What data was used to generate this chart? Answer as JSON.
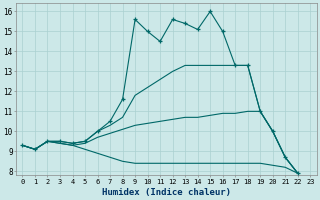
{
  "xlabel": "Humidex (Indice chaleur)",
  "background_color": "#cce8e8",
  "grid_color": "#aad0d0",
  "line_color": "#006868",
  "ylim": [
    7.8,
    16.4
  ],
  "xlim": [
    -0.5,
    23.5
  ],
  "yticks": [
    8,
    9,
    10,
    11,
    12,
    13,
    14,
    15,
    16
  ],
  "xticks": [
    0,
    1,
    2,
    3,
    4,
    5,
    6,
    7,
    8,
    9,
    10,
    11,
    12,
    13,
    14,
    15,
    16,
    17,
    18,
    19,
    20,
    21,
    22,
    23
  ],
  "lines": [
    {
      "x": [
        0,
        1,
        2,
        3,
        4,
        5,
        6,
        7,
        8,
        9,
        10,
        11,
        12,
        13,
        14,
        15,
        16,
        17,
        18,
        19,
        20,
        21,
        22
      ],
      "y": [
        9.3,
        9.1,
        9.5,
        9.5,
        9.4,
        9.5,
        10.0,
        10.5,
        11.6,
        15.6,
        15.0,
        14.5,
        15.6,
        15.4,
        15.1,
        16.0,
        15.0,
        13.3,
        13.3,
        11.0,
        10.0,
        8.7,
        7.9
      ],
      "marker": true
    },
    {
      "x": [
        0,
        1,
        2,
        3,
        4,
        5,
        6,
        7,
        8,
        9,
        10,
        11,
        12,
        13,
        14,
        15,
        16,
        17,
        18,
        19,
        20,
        21,
        22
      ],
      "y": [
        9.3,
        9.1,
        9.5,
        9.5,
        9.4,
        9.5,
        10.0,
        10.3,
        10.7,
        11.8,
        12.2,
        12.6,
        13.0,
        13.3,
        13.3,
        13.3,
        13.3,
        13.3,
        13.3,
        11.0,
        10.0,
        8.7,
        7.9
      ],
      "marker": false
    },
    {
      "x": [
        0,
        1,
        2,
        3,
        4,
        5,
        6,
        7,
        8,
        9,
        10,
        11,
        12,
        13,
        14,
        15,
        16,
        17,
        18,
        19,
        20,
        21,
        22
      ],
      "y": [
        9.3,
        9.1,
        9.5,
        9.4,
        9.3,
        9.4,
        9.7,
        9.9,
        10.1,
        10.3,
        10.4,
        10.5,
        10.6,
        10.7,
        10.7,
        10.8,
        10.9,
        10.9,
        11.0,
        11.0,
        10.0,
        8.7,
        7.9
      ],
      "marker": false
    },
    {
      "x": [
        0,
        1,
        2,
        3,
        4,
        5,
        6,
        7,
        8,
        9,
        10,
        11,
        12,
        13,
        14,
        15,
        16,
        17,
        18,
        19,
        20,
        21,
        22
      ],
      "y": [
        9.3,
        9.1,
        9.5,
        9.4,
        9.3,
        9.1,
        8.9,
        8.7,
        8.5,
        8.4,
        8.4,
        8.4,
        8.4,
        8.4,
        8.4,
        8.4,
        8.4,
        8.4,
        8.4,
        8.4,
        8.3,
        8.2,
        7.9
      ],
      "marker": false
    }
  ]
}
